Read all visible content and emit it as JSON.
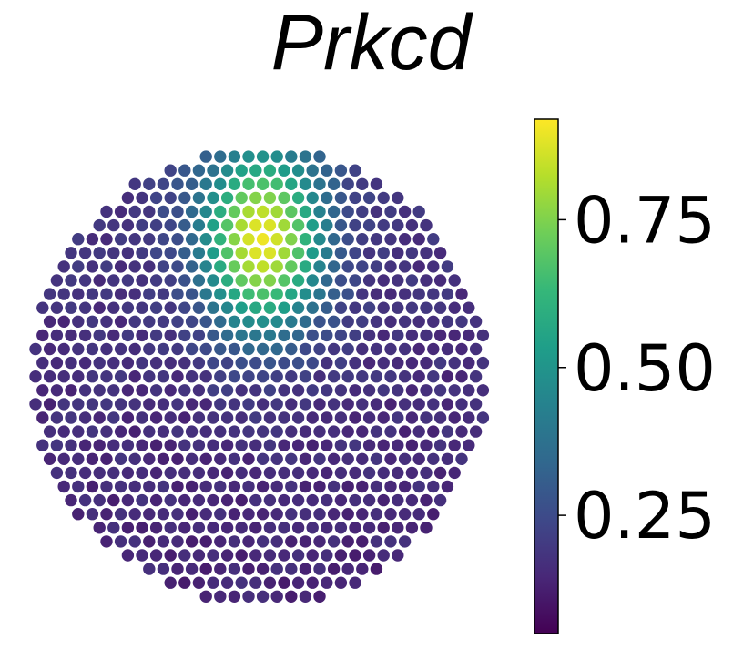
{
  "chart_data": {
    "type": "scatter",
    "subtype": "spatial-expression-hexgrid",
    "title": "Prkcd",
    "xlabel": "",
    "ylabel": "",
    "grid": false,
    "colormap": "viridis",
    "color_range": [
      0.05,
      0.92
    ],
    "colorbar": {
      "placement": "right",
      "ticks": [
        {
          "value": 0.25,
          "label": "0.25"
        },
        {
          "value": 0.5,
          "label": "0.50"
        },
        {
          "value": 0.75,
          "label": "0.75"
        }
      ]
    },
    "spots": {
      "shape": "disk",
      "row_count": 35,
      "background_level": 0.14,
      "hotspot": {
        "row": 7,
        "col": 16.2,
        "peak": 0.9,
        "sigma_col": 3.0,
        "sigma_row": 4.6
      },
      "gradient_up": 0.05
    }
  },
  "colors": {
    "spot_edge": "#ffffff",
    "axis": "#000000",
    "viridis_stops": [
      "#440154",
      "#482878",
      "#3e4989",
      "#31688e",
      "#26828e",
      "#1f9e89",
      "#35b779",
      "#6ece58",
      "#b5de2b",
      "#fde725"
    ]
  }
}
